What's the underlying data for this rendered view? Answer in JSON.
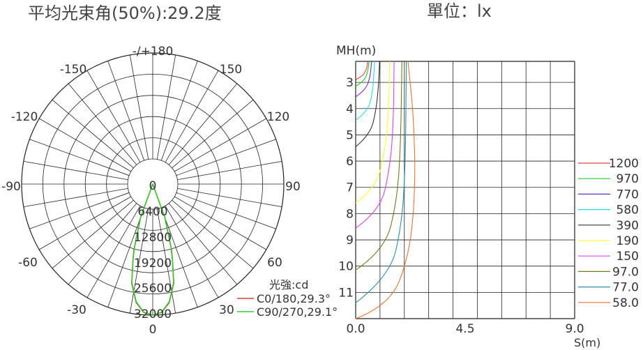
{
  "header": {
    "beam_angle_title": "平均光束角(50%):29.2度",
    "unit_title": "單位：lx"
  },
  "polar": {
    "angle_labels": [
      "-/+180",
      "-150",
      "150",
      "-120",
      "120",
      "-90",
      "90",
      "-60",
      "60",
      "-30",
      "30",
      "0"
    ],
    "intensity_labels": [
      "0",
      "6400",
      "12800",
      "19200",
      "25600",
      "32000"
    ],
    "legend": {
      "title": "光強:cd",
      "items": [
        {
          "label": "C0/180,29.3°",
          "color": "#e53935"
        },
        {
          "label": "C90/270,29.1°",
          "color": "#33cc33"
        }
      ]
    }
  },
  "chart_data": [
    {
      "type": "line",
      "title": "平均光束角(50%):29.2度",
      "subtitle": "光強:cd",
      "polar": true,
      "angle_ticks": [
        "-/+180",
        "-150",
        "-120",
        "-90",
        "-60",
        "-30",
        "0",
        "30",
        "60",
        "90",
        "120",
        "150"
      ],
      "r_ticks": [
        0,
        6400,
        12800,
        19200,
        25600,
        32000
      ],
      "rlim": [
        0,
        32000
      ],
      "series": [
        {
          "name": "C0/180,29.3°",
          "color": "#e53935",
          "angles": [
            -20,
            -16,
            -14.65,
            -12,
            -8,
            -4,
            0,
            4,
            8,
            12,
            14.65,
            16,
            20
          ],
          "values": [
            3200,
            13000,
            16000,
            23000,
            28500,
            31300,
            32000,
            31300,
            28500,
            23000,
            16000,
            13000,
            3200
          ]
        },
        {
          "name": "C90/270,29.1°",
          "color": "#33cc33",
          "angles": [
            -20,
            -16,
            -14.55,
            -12,
            -8,
            -4,
            0,
            4,
            8,
            12,
            14.55,
            16,
            20
          ],
          "values": [
            3000,
            12600,
            16000,
            22800,
            28300,
            31200,
            32000,
            31200,
            28300,
            22800,
            16000,
            12600,
            3000
          ]
        }
      ]
    },
    {
      "type": "line",
      "title": "單位：lx",
      "xlabel": "S(m)",
      "ylabel": "MH(m)",
      "xlim": [
        0,
        9.0
      ],
      "ylim": [
        2.2,
        12.0
      ],
      "y_inverted": true,
      "x_ticks": [
        "0.0",
        "4.5",
        "9.0"
      ],
      "y_ticks": [
        "3",
        "4",
        "5",
        "6",
        "7",
        "8",
        "9",
        "10",
        "11"
      ],
      "series": [
        {
          "name": "1200",
          "color": "#e04040",
          "values": [
            [
              0,
              2.9
            ],
            [
              0.3,
              2.75
            ],
            [
              0.45,
              2.5
            ],
            [
              0.5,
              2.2
            ]
          ]
        },
        {
          "name": "970",
          "color": "#22cc22",
          "values": [
            [
              0,
              3.15
            ],
            [
              0.35,
              2.95
            ],
            [
              0.5,
              2.6
            ],
            [
              0.55,
              2.2
            ]
          ]
        },
        {
          "name": "770",
          "color": "#6a2cd8",
          "values": [
            [
              0,
              3.55
            ],
            [
              0.4,
              3.3
            ],
            [
              0.6,
              2.8
            ],
            [
              0.65,
              2.2
            ]
          ]
        },
        {
          "name": "580",
          "color": "#22e0e0",
          "values": [
            [
              0,
              4.45
            ],
            [
              0.5,
              4.1
            ],
            [
              0.7,
              3.4
            ],
            [
              0.78,
              2.2
            ]
          ]
        },
        {
          "name": "390",
          "color": "#333333",
          "values": [
            [
              0,
              5.45
            ],
            [
              0.6,
              5.0
            ],
            [
              0.85,
              4.0
            ],
            [
              0.95,
              3.0
            ],
            [
              0.98,
              2.2
            ]
          ]
        },
        {
          "name": "190",
          "color": "#ffff33",
          "values": [
            [
              0,
              7.6
            ],
            [
              0.85,
              7.0
            ],
            [
              1.2,
              5.6
            ],
            [
              1.35,
              4.2
            ],
            [
              1.4,
              2.2
            ]
          ]
        },
        {
          "name": "150",
          "color": "#e040e0",
          "values": [
            [
              0,
              8.55
            ],
            [
              1.0,
              7.9
            ],
            [
              1.4,
              6.3
            ],
            [
              1.55,
              4.6
            ],
            [
              1.58,
              2.2
            ]
          ]
        },
        {
          "name": "97.0",
          "color": "#6b7d1e",
          "values": [
            [
              0,
              10.15
            ],
            [
              1.2,
              9.4
            ],
            [
              1.7,
              7.5
            ],
            [
              1.85,
              5.4
            ],
            [
              1.9,
              2.2
            ]
          ]
        },
        {
          "name": "77.0",
          "color": "#2b8fb0",
          "values": [
            [
              0,
              11.4
            ],
            [
              1.4,
              10.4
            ],
            [
              1.9,
              8.4
            ],
            [
              2.05,
              6.0
            ],
            [
              2.08,
              2.2
            ]
          ]
        },
        {
          "name": "58.0",
          "color": "#f07030",
          "values": [
            [
              0,
              12.0
            ],
            [
              1.4,
              11.5
            ],
            [
              2.2,
              9.6
            ],
            [
              2.45,
              7.2
            ],
            [
              2.4,
              4.5
            ],
            [
              2.15,
              2.2
            ]
          ]
        }
      ]
    }
  ]
}
